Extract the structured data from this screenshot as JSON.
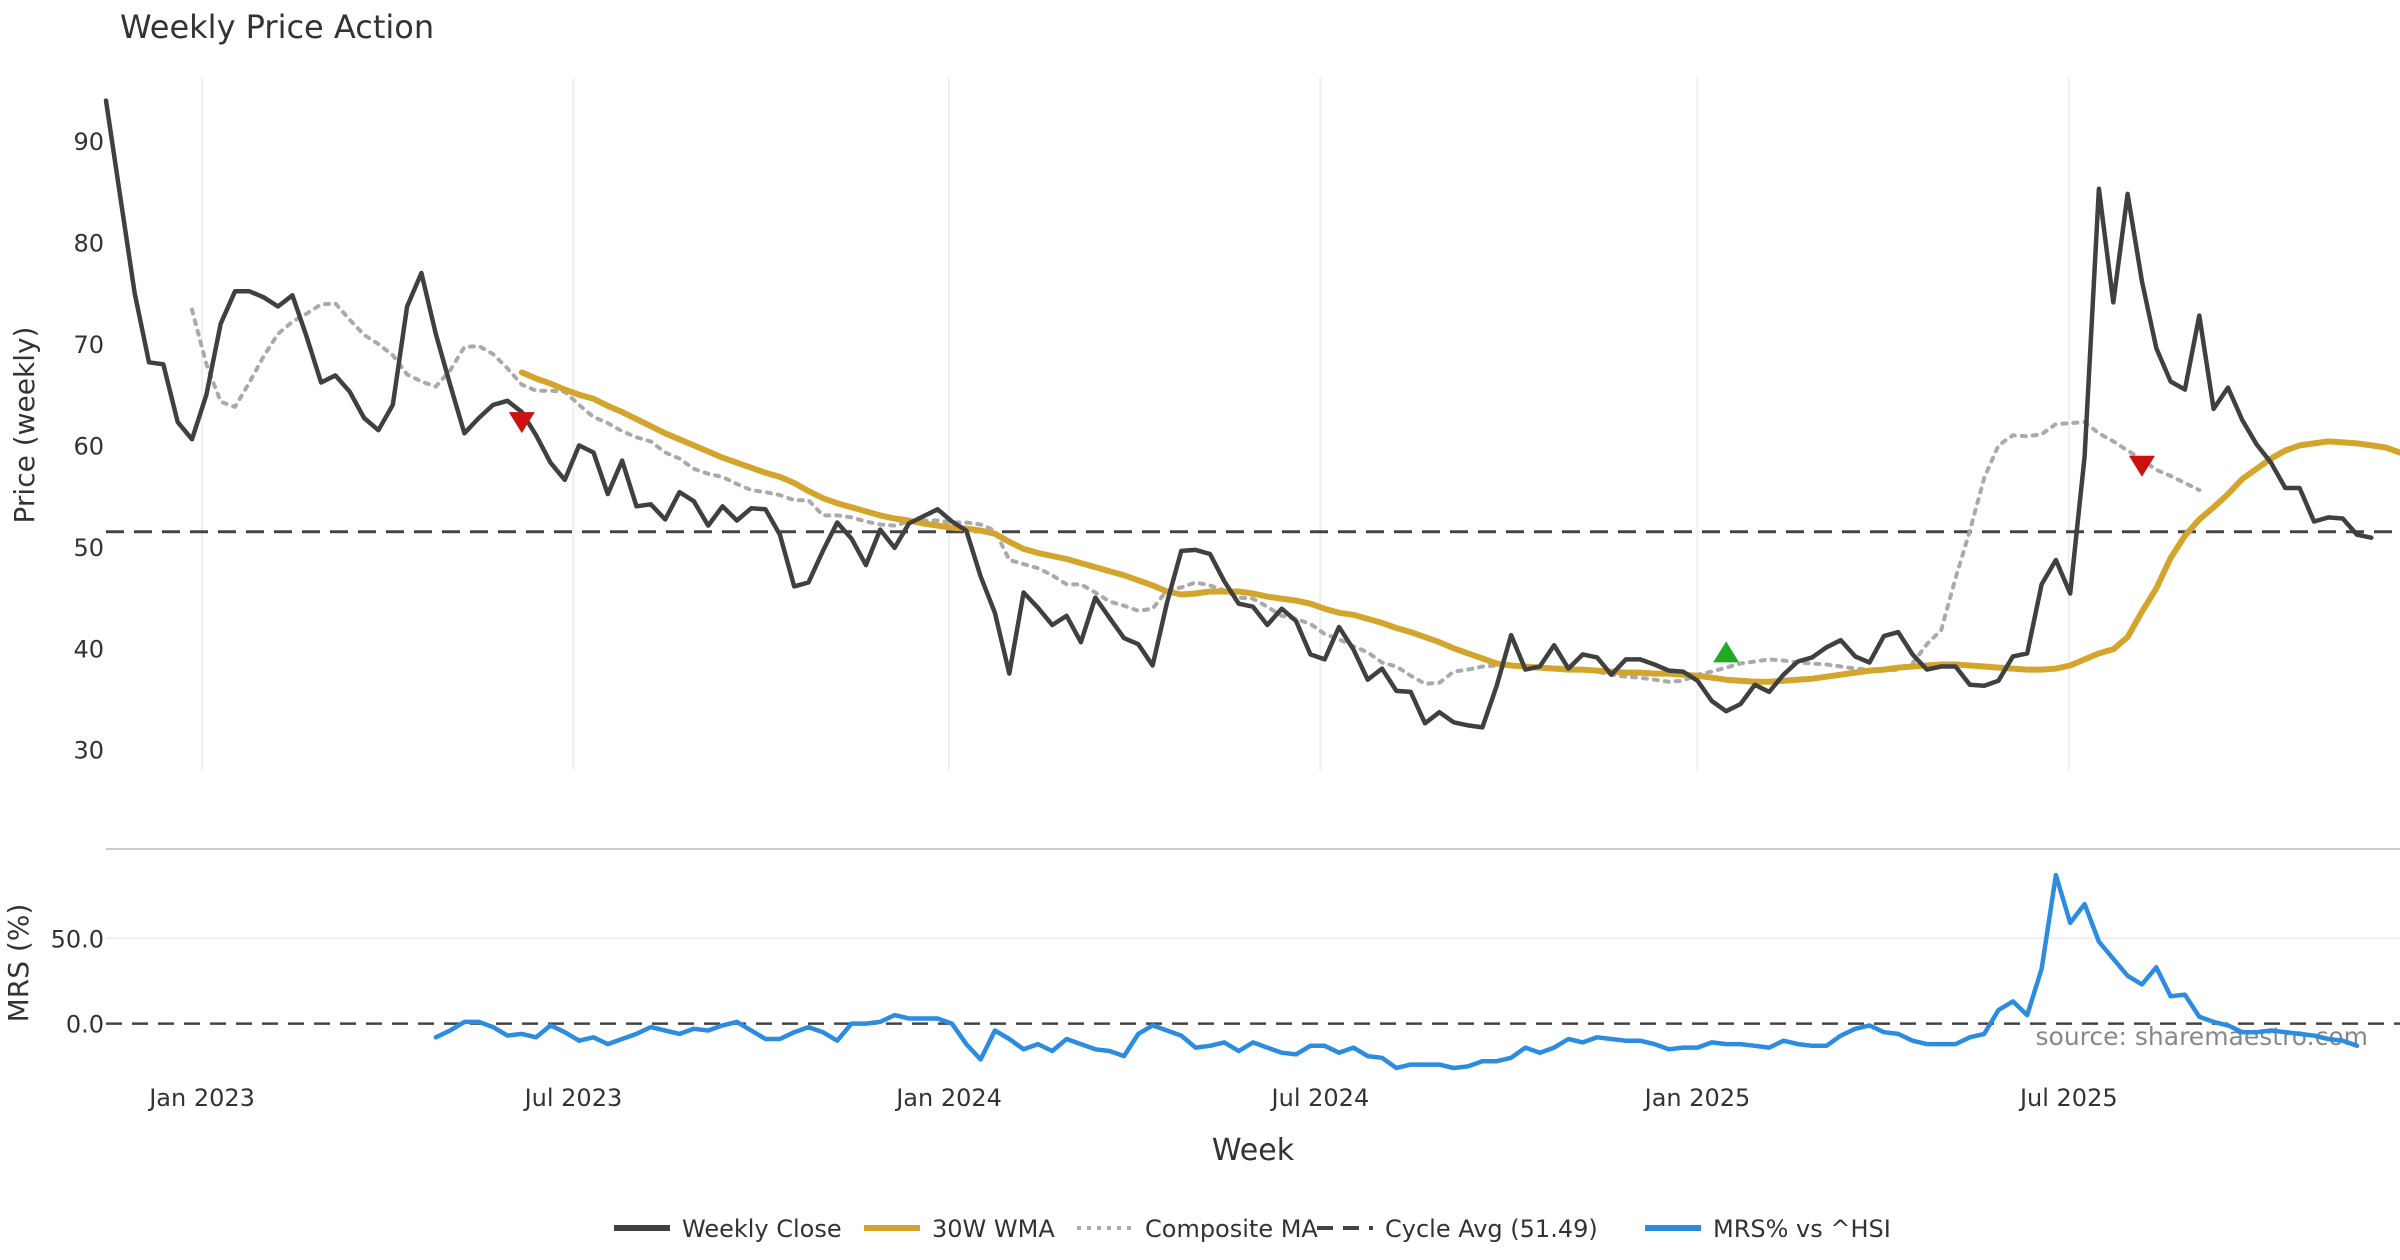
{
  "chart_data": [
    {
      "type": "line",
      "title": "Weekly Price Action",
      "ylabel": "Price (weekly)",
      "ylim": [
        28,
        98
      ],
      "yticks": [
        30,
        40,
        50,
        60,
        70,
        80,
        90
      ],
      "cycle_avg": 51.49,
      "series": [
        {
          "name": "Weekly Close",
          "key": "close",
          "color": "#404040",
          "start_week": 0,
          "values": [
            94,
            84.5,
            75,
            68.2,
            68,
            62.3,
            60.6,
            65,
            72,
            75.2,
            75.2,
            74.6,
            73.7,
            74.8,
            70.7,
            66.2,
            66.9,
            65.3,
            62.7,
            61.5,
            64,
            73.7,
            77,
            71,
            66,
            61.2,
            62.7,
            64,
            64.4,
            63.3,
            61,
            58.3,
            56.6,
            60,
            59.3,
            55.2,
            58.5,
            54,
            54.2,
            52.7,
            55.4,
            54.5,
            52.1,
            54,
            52.6,
            53.8,
            53.7,
            51.2,
            46.1,
            46.5,
            49.6,
            52.4,
            50.8,
            48.2,
            51.7,
            49.9,
            52.3,
            53,
            53.7,
            52.5,
            51.6,
            47.1,
            43.5,
            37.5,
            45.5,
            44,
            42.3,
            43.2,
            40.6,
            45,
            43,
            41,
            40.4,
            38.3,
            44.5,
            49.6,
            49.7,
            49.3,
            46.6,
            44.4,
            44.1,
            42.3,
            43.9,
            42.7,
            39.4,
            38.9,
            42.1,
            39.9,
            36.9,
            38,
            35.8,
            35.7,
            32.6,
            33.7,
            32.7,
            32.4,
            32.2,
            36.3,
            41.3,
            37.9,
            38.2,
            40.3,
            38,
            39.4,
            39.1,
            37.4,
            38.9,
            38.9,
            38.4,
            37.8,
            37.7,
            36.8,
            34.8,
            33.8,
            34.5,
            36.4,
            35.7,
            37.4,
            38.7,
            39.1,
            40.1,
            40.8,
            39.2,
            38.6,
            41.2,
            41.6,
            39.4,
            37.9,
            38.2,
            38.2,
            36.4,
            36.3,
            36.8,
            39.2,
            39.5,
            46.3,
            48.7,
            45.4,
            58.9,
            85.3,
            74.1,
            84.8,
            76.2,
            69.6,
            66.3,
            65.5,
            72.8,
            63.6,
            65.7,
            62.5,
            60.1,
            58.3,
            55.8,
            55.8,
            52.5,
            52.9,
            52.8,
            51.2,
            50.9
          ]
        },
        {
          "name": "30W WMA",
          "key": "wma",
          "color": "#d4a52c",
          "start_week": 29,
          "values": [
            67.2,
            66.6,
            66.1,
            65.5,
            65,
            64.6,
            63.9,
            63.3,
            62.6,
            61.9,
            61.2,
            60.6,
            60,
            59.4,
            58.8,
            58.3,
            57.8,
            57.3,
            56.9,
            56.3,
            55.5,
            54.8,
            54.3,
            53.9,
            53.5,
            53.1,
            52.8,
            52.6,
            52.3,
            52.1,
            51.9,
            51.8,
            51.6,
            51.3,
            50.5,
            49.8,
            49.4,
            49.1,
            48.8,
            48.4,
            48,
            47.6,
            47.2,
            46.7,
            46.2,
            45.6,
            45.3,
            45.4,
            45.6,
            45.6,
            45.6,
            45.4,
            45.1,
            44.9,
            44.7,
            44.4,
            43.9,
            43.5,
            43.3,
            42.9,
            42.5,
            42,
            41.6,
            41.1,
            40.6,
            40,
            39.5,
            39,
            38.5,
            38.3,
            38.2,
            38.1,
            38,
            37.9,
            37.9,
            37.8,
            37.7,
            37.6,
            37.6,
            37.5,
            37.5,
            37.4,
            37.3,
            37.1,
            36.9,
            36.8,
            36.7,
            36.7,
            36.8,
            36.9,
            37,
            37.2,
            37.4,
            37.6,
            37.8,
            37.9,
            38.1,
            38.2,
            38.3,
            38.4,
            38.4,
            38.3,
            38.2,
            38.1,
            38,
            37.9,
            37.9,
            38,
            38.3,
            38.9,
            39.5,
            39.9,
            41.1,
            43.6,
            45.9,
            48.9,
            51.1,
            52.7,
            53.9,
            55.2,
            56.7,
            57.7,
            58.7,
            59.5,
            60,
            60.2,
            60.4,
            60.3,
            60.2,
            60,
            59.8,
            59.3
          ]
        },
        {
          "name": "Composite MA",
          "key": "comp",
          "color": "#aaaaaa",
          "start_week": 6,
          "values": [
            73.4,
            68,
            64.3,
            63.8,
            66.2,
            68.8,
            71,
            72.2,
            73,
            73.9,
            74,
            72.4,
            70.9,
            70,
            68.9,
            67,
            66.3,
            65.8,
            67.4,
            69.7,
            69.8,
            69,
            67.6,
            66,
            65.4,
            65.4,
            65.3,
            64,
            62.8,
            62.2,
            61.4,
            60.8,
            60.4,
            59.3,
            58.7,
            57.7,
            57.2,
            56.9,
            56.2,
            55.6,
            55.4,
            55.1,
            54.6,
            54.6,
            53.1,
            53.1,
            52.9,
            52.5,
            52.2,
            52.1,
            52.5,
            52.6,
            52.6,
            52.4,
            52.4,
            52.2,
            51.6,
            48.7,
            48.3,
            47.9,
            47.2,
            46.3,
            46.3,
            45.5,
            44.6,
            44.2,
            43.7,
            43.9,
            45.7,
            46,
            46.5,
            46.2,
            45.7,
            45,
            44.9,
            44.1,
            43.2,
            42.9,
            42.4,
            41.4,
            40.9,
            40.2,
            39.6,
            38.6,
            38.2,
            37.3,
            36.5,
            36.6,
            37.7,
            37.9,
            38.2,
            38.3,
            38.2,
            38.2,
            38,
            38.1,
            38.1,
            37.9,
            37.7,
            37.4,
            37.2,
            37.1,
            36.9,
            36.7,
            36.8,
            37.4,
            37.7,
            38.1,
            38.5,
            38.7,
            38.9,
            38.8,
            38.6,
            38.5,
            38.4,
            38.2,
            38,
            37.9,
            37.8,
            37.9,
            38.5,
            40.4,
            41.8,
            46.9,
            51.6,
            56.8,
            60,
            61,
            60.9,
            61.1,
            62.1,
            62.2,
            62.3,
            61.2,
            60.4,
            59.5,
            58.6,
            57.6,
            57,
            56.3,
            55.6
          ]
        }
      ],
      "markers": [
        {
          "type": "sell",
          "week": 29,
          "value": 62.3,
          "color": "#cc1111"
        },
        {
          "type": "buy",
          "week": 113,
          "value": 39.6,
          "color": "#22aa22"
        },
        {
          "type": "sell",
          "week": 142,
          "value": 58,
          "color": "#cc1111"
        }
      ]
    },
    {
      "type": "line",
      "ylabel": "MRS (%)",
      "ylim": [
        -33,
        97
      ],
      "yticks": [
        0,
        50
      ],
      "ytick_labels": [
        "0.0",
        "50.0"
      ],
      "zero_line": 0,
      "series": [
        {
          "name": "MRS% vs ^HSI",
          "key": "mrs",
          "color": "#2b8ce0",
          "start_week": 23,
          "values": [
            -8,
            -4,
            1,
            1,
            -2,
            -7,
            -6,
            -8,
            -1,
            -5,
            -10,
            -8,
            -12,
            -9,
            -6,
            -2,
            -4,
            -6,
            -3,
            -4,
            -1,
            1,
            -4,
            -9,
            -9,
            -5,
            -2,
            -5,
            -10,
            0,
            0,
            1,
            5,
            3,
            3,
            3,
            0,
            -12,
            -21,
            -4,
            -9,
            -15,
            -12,
            -16,
            -9,
            -12,
            -15,
            -16,
            -19,
            -6,
            -1,
            -4,
            -7,
            -14,
            -13,
            -11,
            -16,
            -11,
            -14,
            -17,
            -18,
            -13,
            -13,
            -17,
            -14,
            -19,
            -20,
            -26,
            -24,
            -24,
            -24,
            -26,
            -25,
            -22,
            -22,
            -20,
            -14,
            -17,
            -14,
            -9,
            -11,
            -8,
            -9,
            -10,
            -10,
            -12,
            -15,
            -14,
            -14,
            -11,
            -12,
            -12,
            -13,
            -14,
            -10,
            -12,
            -13,
            -13,
            -7,
            -3,
            -1,
            -5,
            -6,
            -10,
            -12,
            -12,
            -12,
            -8,
            -6,
            8,
            13,
            5,
            32,
            87,
            59,
            70,
            48,
            38,
            28,
            23,
            33,
            16,
            17,
            4,
            1,
            -1,
            -5,
            -5,
            -4,
            -5,
            -6,
            -7,
            -9,
            -10,
            -13
          ]
        }
      ]
    }
  ],
  "axis": {
    "xlabel": "Week",
    "total_weeks": 161,
    "xticks": [
      {
        "label": "Jan 2023",
        "week": 6.7
      },
      {
        "label": "Jul 2023",
        "week": 32.6
      },
      {
        "label": "Jan 2024",
        "week": 58.8
      },
      {
        "label": "Jul 2024",
        "week": 84.7
      },
      {
        "label": "Jan 2025",
        "week": 111.0
      },
      {
        "label": "Jul 2025",
        "week": 136.9
      }
    ]
  },
  "legend": {
    "placement": "bottom-center",
    "entries": [
      {
        "label": "Weekly Close",
        "key": "close",
        "color": "#404040",
        "style": "solid"
      },
      {
        "label": "30W WMA",
        "key": "wma",
        "color": "#d4a52c",
        "style": "solid"
      },
      {
        "label": "Composite MA",
        "key": "comp",
        "color": "#aaaaaa",
        "style": "dotted"
      },
      {
        "label": "Cycle Avg (51.49)",
        "key": "avg",
        "color": "#444444",
        "style": "dashed"
      },
      {
        "label": "MRS% vs ^HSI",
        "key": "mrs",
        "color": "#2b8ce0",
        "style": "solid"
      }
    ]
  },
  "source": "source: sharemaestro.com"
}
